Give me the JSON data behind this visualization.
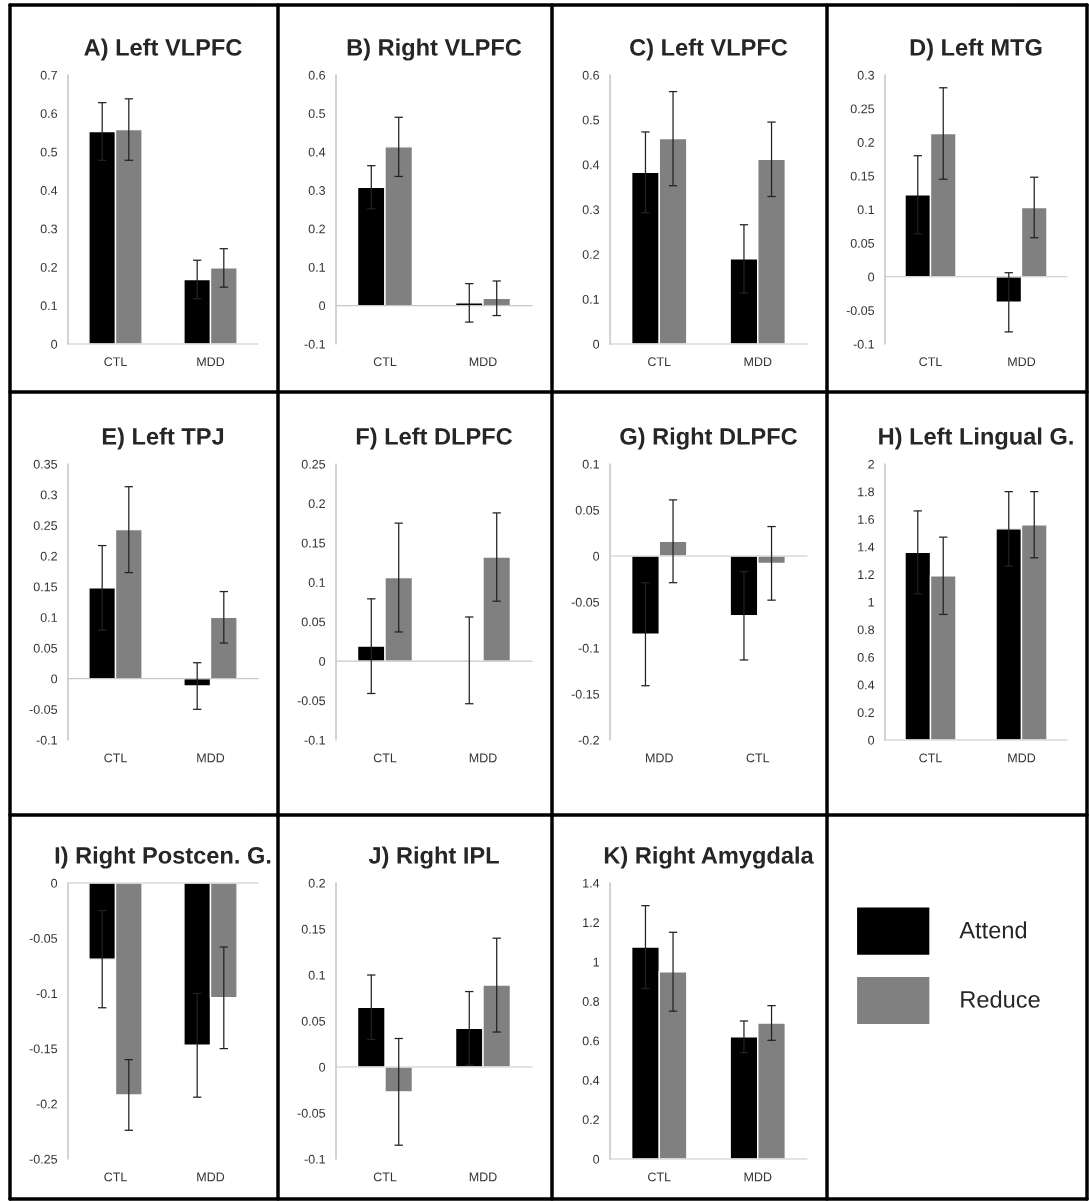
{
  "chart_data": [
    {
      "type": "bar",
      "title": "A) Left VLPFC",
      "categories": [
        "CTL",
        "MDD"
      ],
      "ylim": [
        0,
        0.7
      ],
      "yticks": [
        0,
        0.1,
        0.2,
        0.3,
        0.4,
        0.5,
        0.6,
        0.7
      ],
      "series": [
        {
          "color": "#000000",
          "values": [
            0.553,
            0.168
          ],
          "errors": [
            0.075,
            0.05
          ]
        },
        {
          "color": "#808080",
          "values": [
            0.558,
            0.198
          ],
          "errors": [
            0.08,
            0.05
          ]
        }
      ]
    },
    {
      "type": "bar",
      "title": "B) Right VLPFC",
      "categories": [
        "CTL",
        "MDD"
      ],
      "ylim": [
        -0.1,
        0.6
      ],
      "yticks": [
        -0.1,
        0,
        0.1,
        0.2,
        0.3,
        0.4,
        0.5,
        0.6
      ],
      "series": [
        {
          "color": "#000000",
          "values": [
            0.308,
            0.007
          ],
          "errors": [
            0.056,
            0.05
          ]
        },
        {
          "color": "#808080",
          "values": [
            0.413,
            0.019
          ],
          "errors": [
            0.077,
            0.045
          ]
        }
      ]
    },
    {
      "type": "bar",
      "title": "C) Left VLPFC",
      "categories": [
        "CTL",
        "MDD"
      ],
      "ylim": [
        0,
        0.6
      ],
      "yticks": [
        0,
        0.1,
        0.2,
        0.3,
        0.4,
        0.5,
        0.6
      ],
      "series": [
        {
          "color": "#000000",
          "values": [
            0.383,
            0.19
          ],
          "errors": [
            0.09,
            0.076
          ]
        },
        {
          "color": "#808080",
          "values": [
            0.458,
            0.412
          ],
          "errors": [
            0.105,
            0.083
          ]
        }
      ]
    },
    {
      "type": "bar",
      "title": "D) Left MTG",
      "categories": [
        "CTL",
        "MDD"
      ],
      "ylim": [
        -0.1,
        0.3
      ],
      "yticks": [
        -0.1,
        -0.05,
        0,
        0.05,
        0.1,
        0.15,
        0.2,
        0.25,
        0.3
      ],
      "series": [
        {
          "color": "#000000",
          "values": [
            0.122,
            -0.038
          ],
          "errors": [
            0.058,
            0.044
          ]
        },
        {
          "color": "#808080",
          "values": [
            0.213,
            0.103
          ],
          "errors": [
            0.068,
            0.045
          ]
        }
      ]
    },
    {
      "type": "bar",
      "title": "E) Left TPJ",
      "categories": [
        "CTL",
        "MDD"
      ],
      "ylim": [
        -0.1,
        0.35
      ],
      "yticks": [
        -0.1,
        -0.05,
        0,
        0.05,
        0.1,
        0.15,
        0.2,
        0.25,
        0.3,
        0.35
      ],
      "series": [
        {
          "color": "#000000",
          "values": [
            0.148,
            -0.012
          ],
          "errors": [
            0.069,
            0.038
          ]
        },
        {
          "color": "#808080",
          "values": [
            0.243,
            0.1
          ],
          "errors": [
            0.07,
            0.042
          ]
        }
      ]
    },
    {
      "type": "bar",
      "title": "F) Left DLPFC",
      "categories": [
        "CTL",
        "MDD"
      ],
      "ylim": [
        -0.1,
        0.25
      ],
      "yticks": [
        -0.1,
        -0.05,
        0,
        0.05,
        0.1,
        0.15,
        0.2,
        0.25
      ],
      "series": [
        {
          "color": "#000000",
          "values": [
            0.019,
            0.001
          ],
          "errors": [
            0.06,
            0.055
          ]
        },
        {
          "color": "#808080",
          "values": [
            0.106,
            0.132
          ],
          "errors": [
            0.069,
            0.056
          ]
        }
      ]
    },
    {
      "type": "bar",
      "title": "G) Right DLPFC",
      "categories": [
        "MDD",
        "CTL"
      ],
      "ylim": [
        -0.2,
        0.1
      ],
      "yticks": [
        -0.2,
        -0.15,
        -0.1,
        -0.05,
        0,
        0.05,
        0.1
      ],
      "series": [
        {
          "color": "#000000",
          "values": [
            -0.085,
            -0.065
          ],
          "errors": [
            0.056,
            0.048
          ]
        },
        {
          "color": "#808080",
          "values": [
            0.016,
            -0.008
          ],
          "errors": [
            0.045,
            0.04
          ]
        }
      ]
    },
    {
      "type": "bar",
      "title": "H) Left Lingual G.",
      "categories": [
        "CTL",
        "MDD"
      ],
      "ylim": [
        0,
        2
      ],
      "yticks": [
        0,
        0.2,
        0.4,
        0.6,
        0.8,
        1,
        1.2,
        1.4,
        1.6,
        1.8,
        2
      ],
      "series": [
        {
          "color": "#000000",
          "values": [
            1.36,
            1.53
          ],
          "errors": [
            0.3,
            0.27
          ]
        },
        {
          "color": "#808080",
          "values": [
            1.19,
            1.56
          ],
          "errors": [
            0.28,
            0.24
          ]
        }
      ]
    },
    {
      "type": "bar",
      "title": "I) Right Postcen. G.",
      "categories": [
        "CTL",
        "MDD"
      ],
      "ylim": [
        -0.25,
        0
      ],
      "yticks": [
        -0.25,
        -0.2,
        -0.15,
        -0.1,
        -0.05,
        0
      ],
      "series": [
        {
          "color": "#000000",
          "values": [
            -0.069,
            -0.147
          ],
          "errors": [
            0.044,
            0.047
          ]
        },
        {
          "color": "#808080",
          "values": [
            -0.192,
            -0.104
          ],
          "errors": [
            0.032,
            0.046
          ]
        }
      ]
    },
    {
      "type": "bar",
      "title": "J) Right IPL",
      "categories": [
        "CTL",
        "MDD"
      ],
      "ylim": [
        -0.1,
        0.2
      ],
      "yticks": [
        -0.1,
        -0.05,
        0,
        0.05,
        0.1,
        0.15,
        0.2
      ],
      "series": [
        {
          "color": "#000000",
          "values": [
            0.065,
            0.042
          ],
          "errors": [
            0.035,
            0.04
          ]
        },
        {
          "color": "#808080",
          "values": [
            -0.027,
            0.089
          ],
          "errors": [
            0.058,
            0.051
          ]
        }
      ]
    },
    {
      "type": "bar",
      "title": "K) Right Amygdala",
      "categories": [
        "CTL",
        "MDD"
      ],
      "ylim": [
        0,
        1.4
      ],
      "yticks": [
        0,
        0.2,
        0.4,
        0.6,
        0.8,
        1,
        1.2,
        1.4
      ],
      "legend": "right",
      "series": [
        {
          "name": "Attend",
          "color": "#000000",
          "values": [
            1.075,
            0.62
          ],
          "errors": [
            0.21,
            0.08
          ]
        },
        {
          "name": "Reduce",
          "color": "#808080",
          "values": [
            0.95,
            0.69
          ],
          "errors": [
            0.2,
            0.088
          ]
        }
      ]
    }
  ]
}
